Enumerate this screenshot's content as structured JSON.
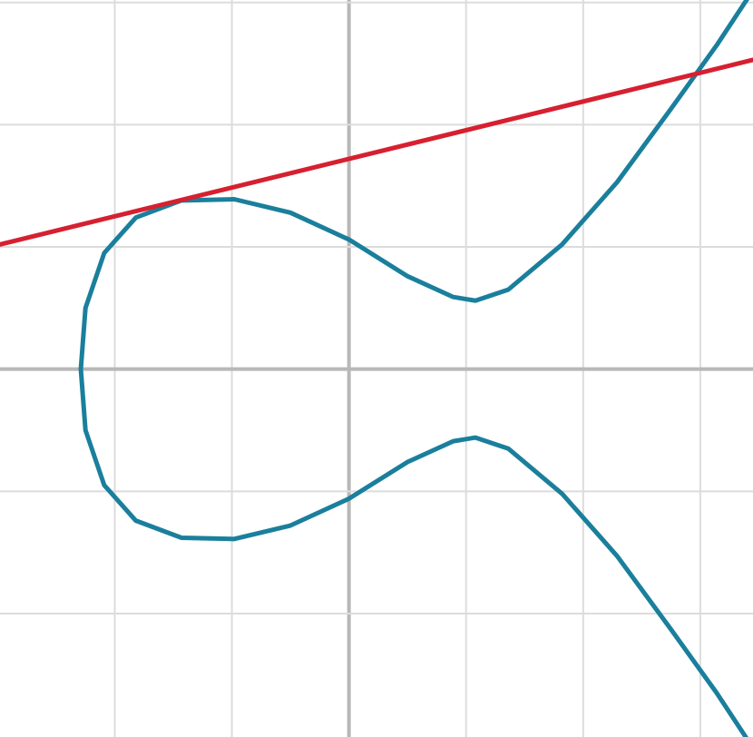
{
  "chart_data": {
    "type": "line",
    "xlim": [
      -2.98,
      3.45
    ],
    "ylim": [
      -3.01,
      3.02
    ],
    "xticks": [
      -2,
      -1,
      0,
      1,
      2,
      3
    ],
    "yticks": [
      -2,
      -1,
      0,
      1,
      2,
      3
    ],
    "grid": true,
    "series": [
      {
        "color": "#1a7f9c",
        "x": [
          3.45,
          3.14,
          2.75,
          2.29,
          1.82,
          1.36,
          1.08,
          0.89,
          0.5,
          0,
          -0.5,
          -0.98,
          -1.43,
          -1.82,
          -2.09,
          -2.25,
          -2.29,
          -2.25,
          -2.09,
          -1.82,
          -1.43,
          -0.98,
          -0.5,
          0,
          0.5,
          0.89,
          1.08,
          1.36,
          1.82,
          2.29,
          2.75,
          3.14,
          3.45
        ],
        "values": [
          3.1,
          2.65,
          2.13,
          1.53,
          1.02,
          0.65,
          0.56,
          0.59,
          0.76,
          1.06,
          1.28,
          1.39,
          1.38,
          1.24,
          0.95,
          0.5,
          0,
          -0.5,
          -0.95,
          -1.24,
          -1.38,
          -1.39,
          -1.28,
          -1.06,
          -0.76,
          -0.59,
          -0.56,
          -0.65,
          -1.02,
          -1.53,
          -2.13,
          -2.65,
          -3.1
        ]
      },
      {
        "color": "#d62030",
        "x": [
          -2.98,
          3.45
        ],
        "values": [
          1.02,
          2.53
        ]
      }
    ]
  }
}
